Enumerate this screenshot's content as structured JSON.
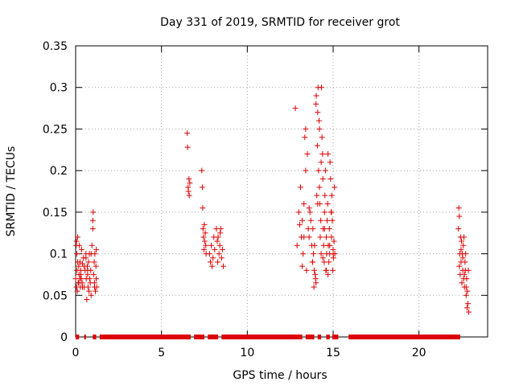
{
  "chart_data": {
    "type": "scatter",
    "title": "Day 331 of 2019, SRMTID for receiver grot",
    "xlabel": "GPS time / hours",
    "ylabel": "SRMTID / TECUs",
    "xlim": [
      0,
      24
    ],
    "ylim": [
      0,
      0.35
    ],
    "x_ticks": [
      "0",
      "5",
      "10",
      "15",
      "20"
    ],
    "y_ticks": [
      "0",
      "0.05",
      "0.1",
      "0.15",
      "0.2",
      "0.25",
      "0.3",
      "0.35"
    ],
    "grid": true,
    "legend": "none",
    "marker": "plus",
    "color": "#dd0000",
    "series": [
      {
        "x": [
          0.0,
          0.03,
          0.05,
          0.07,
          0.1,
          0.12,
          0.15,
          0.18,
          0.2,
          0.22,
          0.25,
          0.28,
          0.3,
          0.33,
          0.35,
          0.38,
          0.4,
          0.45,
          0.5,
          0.55,
          0.6,
          0.62,
          0.65,
          0.68,
          0.7,
          0.72,
          0.75,
          0.78,
          0.8,
          0.82,
          0.85,
          0.88,
          0.9,
          0.95,
          1.0,
          1.02,
          1.05,
          1.08,
          1.1,
          1.12,
          1.15,
          1.18,
          1.2,
          1.22,
          0.05,
          0.08,
          0.12,
          0.18,
          0.25,
          0.3,
          0.4,
          0.5,
          0.6,
          0.7,
          0.9,
          1.0,
          1.1,
          1.2
        ],
        "y": [
          0.07,
          0.11,
          0.06,
          0.1,
          0.055,
          0.12,
          0.065,
          0.085,
          0.075,
          0.11,
          0.09,
          0.06,
          0.08,
          0.07,
          0.105,
          0.065,
          0.088,
          0.095,
          0.06,
          0.08,
          0.1,
          0.07,
          0.045,
          0.085,
          0.075,
          0.06,
          0.09,
          0.055,
          0.1,
          0.07,
          0.065,
          0.08,
          0.05,
          0.11,
          0.14,
          0.15,
          0.075,
          0.09,
          0.065,
          0.1,
          0.055,
          0.085,
          0.07,
          0.06,
          0.115,
          0.08,
          0.09,
          0.065,
          0.07,
          0.075,
          0.06,
          0.085,
          0.095,
          0.08,
          0.1,
          0.13,
          0.06,
          0.105
        ]
      },
      {
        "x": [
          6.5,
          6.52,
          6.55,
          6.57,
          6.6,
          6.62,
          6.65,
          7.35,
          7.38,
          7.4,
          7.42,
          7.45,
          7.48,
          7.5,
          7.52,
          7.55,
          7.58,
          7.6,
          7.8,
          7.85,
          7.9,
          7.95,
          8.0,
          8.05,
          8.1,
          8.2,
          8.25,
          8.3,
          8.35,
          8.4,
          8.45,
          8.5,
          8.55,
          8.6,
          8.28,
          8.42
        ],
        "y": [
          0.245,
          0.228,
          0.18,
          0.175,
          0.19,
          0.17,
          0.185,
          0.2,
          0.18,
          0.155,
          0.13,
          0.12,
          0.105,
          0.135,
          0.115,
          0.125,
          0.11,
          0.1,
          0.1,
          0.09,
          0.11,
          0.085,
          0.095,
          0.12,
          0.105,
          0.13,
          0.115,
          0.12,
          0.1,
          0.11,
          0.13,
          0.095,
          0.105,
          0.085,
          0.09,
          0.125
        ]
      },
      {
        "x": [
          12.8,
          12.9,
          13.0,
          13.05,
          13.1,
          13.15,
          13.2,
          13.25,
          13.3,
          13.35,
          13.4,
          13.45,
          13.5,
          13.55,
          13.6,
          13.65,
          13.7,
          13.75,
          13.8,
          13.82,
          13.85,
          13.88,
          13.9,
          13.92,
          13.95,
          13.98,
          14.0,
          14.02,
          14.05,
          14.08,
          14.1,
          14.12,
          14.15,
          14.18,
          14.2,
          14.22,
          14.25,
          14.28,
          14.3,
          14.32,
          14.35,
          14.38,
          14.4,
          14.42,
          14.45,
          14.48,
          14.5,
          14.52,
          14.55,
          14.58,
          14.6,
          14.62,
          14.65,
          14.68,
          14.7,
          14.72,
          14.75,
          14.78,
          14.8,
          14.82,
          14.85,
          14.88,
          14.9,
          14.92,
          14.95,
          14.98,
          15.0,
          15.02,
          15.05,
          15.08,
          15.1,
          13.2,
          13.3,
          13.4,
          13.6,
          13.8,
          14.0,
          14.1,
          14.2,
          14.3,
          14.4,
          14.5,
          14.6,
          14.7,
          14.8,
          14.9,
          15.0
        ],
        "y": [
          0.275,
          0.11,
          0.15,
          0.135,
          0.18,
          0.12,
          0.14,
          0.1,
          0.16,
          0.24,
          0.25,
          0.08,
          0.22,
          0.13,
          0.12,
          0.15,
          0.14,
          0.11,
          0.09,
          0.13,
          0.1,
          0.06,
          0.08,
          0.11,
          0.075,
          0.07,
          0.28,
          0.29,
          0.17,
          0.23,
          0.27,
          0.3,
          0.2,
          0.26,
          0.18,
          0.16,
          0.12,
          0.14,
          0.1,
          0.3,
          0.24,
          0.22,
          0.19,
          0.13,
          0.11,
          0.09,
          0.15,
          0.17,
          0.2,
          0.08,
          0.12,
          0.1,
          0.14,
          0.16,
          0.075,
          0.11,
          0.09,
          0.13,
          0.1,
          0.21,
          0.19,
          0.15,
          0.12,
          0.17,
          0.14,
          0.08,
          0.105,
          0.095,
          0.115,
          0.18,
          0.1,
          0.085,
          0.12,
          0.2,
          0.155,
          0.09,
          0.065,
          0.16,
          0.25,
          0.21,
          0.095,
          0.13,
          0.08,
          0.22,
          0.11,
          0.15,
          0.1
        ]
      },
      {
        "x": [
          22.3,
          22.32,
          22.35,
          22.38,
          22.4,
          22.42,
          22.45,
          22.48,
          22.5,
          22.52,
          22.55,
          22.58,
          22.6,
          22.62,
          22.65,
          22.68,
          22.7,
          22.72,
          22.75,
          22.78,
          22.8,
          22.82,
          22.85,
          22.88,
          22.9,
          22.35,
          22.45,
          22.55,
          22.65,
          22.75
        ],
        "y": [
          0.13,
          0.155,
          0.085,
          0.1,
          0.075,
          0.12,
          0.09,
          0.115,
          0.065,
          0.1,
          0.08,
          0.11,
          0.07,
          0.12,
          0.06,
          0.09,
          0.08,
          0.1,
          0.05,
          0.07,
          0.035,
          0.055,
          0.04,
          0.08,
          0.03,
          0.145,
          0.105,
          0.095,
          0.075,
          0.06
        ]
      }
    ],
    "zero_segments": [
      [
        0,
        0.2
      ],
      [
        0.5,
        0.6
      ],
      [
        1.0,
        1.2
      ],
      [
        1.4,
        6.7
      ],
      [
        6.9,
        7.5
      ],
      [
        7.7,
        8.3
      ],
      [
        8.5,
        13.2
      ],
      [
        13.4,
        13.9
      ],
      [
        14.1,
        14.3
      ],
      [
        14.6,
        14.8
      ],
      [
        14.95,
        15.3
      ],
      [
        15.9,
        22.4
      ]
    ]
  }
}
